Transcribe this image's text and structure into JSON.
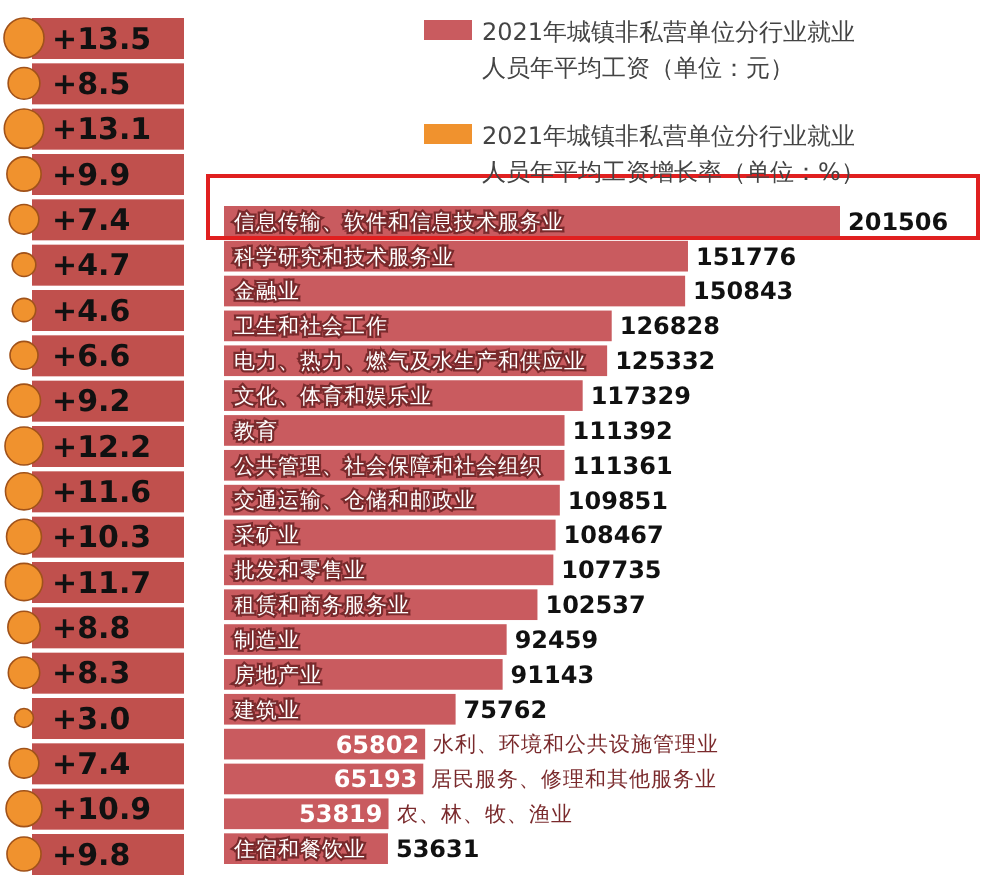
{
  "chart_data": [
    {
      "type": "bar",
      "orientation": "horizontal",
      "categories": [
        "信息传输、软件和信息技术服务业",
        "科学研究和技术服务业",
        "金融业",
        "卫生和社会工作",
        "电力、热力、燃气及水生产和供应业",
        "文化、体育和娱乐业",
        "教育",
        "公共管理、社会保障和社会组织",
        "交通运输、仓储和邮政业",
        "采矿业",
        "批发和零售业",
        "租赁和商务服务业",
        "制造业",
        "房地产业",
        "建筑业",
        "水利、环境和公共设施管理业",
        "居民服务、修理和其他服务业",
        "农、林、牧、渔业",
        "住宿和餐饮业"
      ],
      "series": [
        {
          "name": "2021年城镇非私营单位分行业就业人员年平均工资（单位：元）",
          "color": "#c95b5f",
          "values": [
            201506,
            151776,
            150843,
            126828,
            125332,
            117329,
            111392,
            111361,
            109851,
            108467,
            107735,
            102537,
            92459,
            91143,
            75762,
            65802,
            65193,
            53819,
            53631
          ]
        }
      ],
      "data_labels": true,
      "legend": "top right"
    },
    {
      "type": "other",
      "series": [
        {
          "name": "2021年城镇非私营单位分行业就业人员年平均工资增长率（单位：%）",
          "color": "#f0922e",
          "values": [
            13.5,
            8.5,
            13.1,
            9.9,
            7.4,
            4.7,
            4.6,
            6.6,
            9.2,
            12.2,
            11.6,
            10.3,
            11.7,
            8.8,
            8.3,
            3.0,
            7.4,
            10.9,
            9.8
          ],
          "value_labels": [
            "+13.5",
            "+8.5",
            "+13.1",
            "+9.9",
            "+7.4",
            "+4.7",
            "+4.6",
            "+6.6",
            "+9.2",
            "+12.2",
            "+11.6",
            "+10.3",
            "+11.7",
            "+8.8",
            "+8.3",
            "+3.0",
            "+7.4",
            "+10.9",
            "+9.8"
          ]
        }
      ],
      "legend": "top right"
    }
  ]
}
